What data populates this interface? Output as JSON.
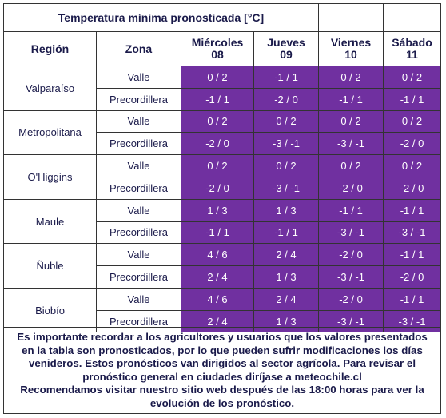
{
  "title": "Temperatura mínima pronosticada [°C]",
  "headers": {
    "region": "Región",
    "zona": "Zona",
    "days": [
      {
        "name": "Miércoles",
        "date": "08"
      },
      {
        "name": "Jueves",
        "date": "09"
      },
      {
        "name": "Viernes",
        "date": "10"
      },
      {
        "name": "Sábado",
        "date": "11"
      }
    ]
  },
  "regions": [
    {
      "name": "Valparaíso",
      "rows": [
        {
          "zona": "Valle",
          "values": [
            "0 / 2",
            "-1 / 1",
            "0 / 2",
            "0 / 2"
          ]
        },
        {
          "zona": "Precordillera",
          "values": [
            "-1 / 1",
            "-2 / 0",
            "-1 / 1",
            "-1 / 1"
          ]
        }
      ]
    },
    {
      "name": "Metropolitana",
      "rows": [
        {
          "zona": "Valle",
          "values": [
            "0 / 2",
            "0 / 2",
            "0 / 2",
            "0 / 2"
          ]
        },
        {
          "zona": "Precordillera",
          "values": [
            "-2 / 0",
            "-3 / -1",
            "-3 / -1",
            "-2 / 0"
          ]
        }
      ]
    },
    {
      "name": "O'Higgins",
      "rows": [
        {
          "zona": "Valle",
          "values": [
            "0 / 2",
            "0 / 2",
            "0 / 2",
            "0 / 2"
          ]
        },
        {
          "zona": "Precordillera",
          "values": [
            "-2 / 0",
            "-3 / -1",
            "-2 / 0",
            "-2 / 0"
          ]
        }
      ]
    },
    {
      "name": "Maule",
      "rows": [
        {
          "zona": "Valle",
          "values": [
            "1 / 3",
            "1 / 3",
            "-1 / 1",
            "-1 / 1"
          ]
        },
        {
          "zona": "Precordillera",
          "values": [
            "-1 / 1",
            "-1 / 1",
            "-3 / -1",
            "-3 / -1"
          ]
        }
      ]
    },
    {
      "name": "Ñuble",
      "rows": [
        {
          "zona": "Valle",
          "values": [
            "4 / 6",
            "2 / 4",
            "-2 / 0",
            "-1 / 1"
          ]
        },
        {
          "zona": "Precordillera",
          "values": [
            "2 / 4",
            "1 / 3",
            "-3 / -1",
            "-2 / 0"
          ]
        }
      ]
    },
    {
      "name": "Biobío",
      "rows": [
        {
          "zona": "Valle",
          "values": [
            "4 / 6",
            "2 / 4",
            "-2 / 0",
            "-1 / 1"
          ]
        },
        {
          "zona": "Precordillera",
          "values": [
            "2 / 4",
            "1 / 3",
            "-3 / -1",
            "-3 / -1"
          ]
        }
      ]
    }
  ],
  "note": [
    "Es importante recordar a los agricultores y usuarios que los valores presentados",
    "en la tabla son pronosticados, por lo que pueden sufrir modificaciones los días",
    "venideros. Estos pronósticos van dirigidos al sector agrícola. Para revisar el",
    "pronóstico general en ciudades diríjase a meteochile.cl",
    "Recomendamos visitar nuestro sitio web después de las 18:00 horas para ver la",
    "evolución de los pronóstico."
  ]
}
